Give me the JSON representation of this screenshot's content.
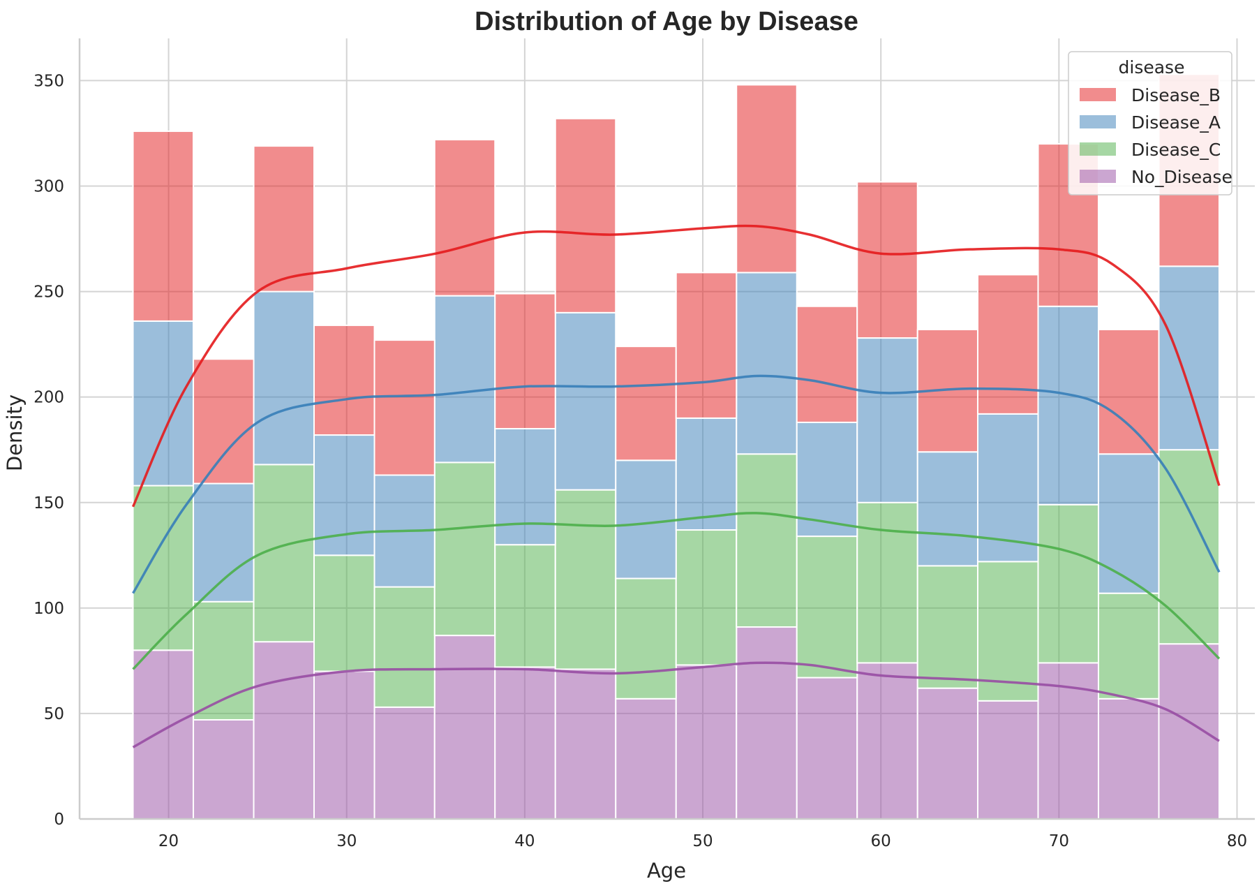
{
  "chart_data": {
    "type": "bar",
    "stacked": true,
    "title": "Distribution of Age by Disease",
    "xlabel": "Age",
    "ylabel": "Density",
    "xlim": [
      15,
      81
    ],
    "ylim": [
      0,
      370
    ],
    "xticks": [
      20,
      30,
      40,
      50,
      60,
      70,
      80
    ],
    "yticks": [
      0,
      50,
      100,
      150,
      200,
      250,
      300,
      350
    ],
    "grid": true,
    "legend": {
      "title": "disease",
      "placement": "top-right"
    },
    "bin_edges": [
      18,
      21.39,
      24.78,
      28.17,
      31.56,
      34.94,
      38.33,
      41.72,
      45.11,
      48.5,
      51.89,
      55.28,
      58.67,
      62.06,
      65.44,
      68.83,
      72.22,
      75.61,
      79
    ],
    "series": [
      {
        "name": "No_Disease",
        "color": "#984ea3",
        "values": [
          80,
          47,
          84,
          70,
          53,
          87,
          72,
          71,
          57,
          73,
          91,
          67,
          74,
          62,
          56,
          74,
          57,
          83
        ]
      },
      {
        "name": "Disease_C",
        "color": "#4daf4a",
        "values": [
          78,
          56,
          84,
          55,
          57,
          82,
          58,
          85,
          57,
          64,
          82,
          67,
          76,
          58,
          66,
          75,
          50,
          92
        ]
      },
      {
        "name": "Disease_A",
        "color": "#377eb8",
        "values": [
          78,
          56,
          82,
          57,
          53,
          79,
          55,
          84,
          56,
          53,
          86,
          54,
          78,
          54,
          70,
          94,
          66,
          87
        ]
      },
      {
        "name": "Disease_B",
        "color": "#e41a1c",
        "values": [
          90,
          59,
          69,
          52,
          64,
          74,
          64,
          92,
          54,
          69,
          89,
          55,
          74,
          58,
          66,
          77,
          59,
          91
        ]
      }
    ],
    "kde": [
      {
        "name": "No_Disease",
        "color": "#984ea3",
        "x": [
          18,
          21,
          25,
          30,
          35,
          40,
          45,
          50,
          53,
          56,
          60,
          65,
          70,
          73,
          76,
          79
        ],
        "y": [
          34,
          48,
          63,
          70,
          71,
          71,
          69,
          72,
          74,
          73,
          68,
          66,
          63,
          59,
          52,
          37
        ]
      },
      {
        "name": "Disease_C",
        "color": "#4daf4a",
        "x": [
          18,
          21,
          25,
          30,
          35,
          40,
          45,
          50,
          53,
          56,
          60,
          65,
          70,
          73,
          76,
          79
        ],
        "y": [
          71,
          97,
          125,
          135,
          137,
          140,
          139,
          143,
          145,
          142,
          137,
          134,
          128,
          118,
          101,
          76
        ]
      },
      {
        "name": "Disease_A",
        "color": "#377eb8",
        "x": [
          18,
          21,
          25,
          30,
          35,
          40,
          45,
          50,
          53,
          56,
          60,
          65,
          70,
          73,
          76,
          79
        ],
        "y": [
          107,
          149,
          188,
          199,
          201,
          205,
          205,
          207,
          210,
          208,
          202,
          204,
          202,
          193,
          166,
          117
        ]
      },
      {
        "name": "Disease_B",
        "color": "#e41a1c",
        "x": [
          18,
          21,
          25,
          30,
          35,
          40,
          45,
          50,
          53,
          56,
          60,
          65,
          70,
          73,
          76,
          79
        ],
        "y": [
          148,
          205,
          250,
          261,
          268,
          278,
          277,
          280,
          281,
          277,
          268,
          270,
          270,
          263,
          234,
          158
        ]
      }
    ],
    "legend_order": [
      "Disease_B",
      "Disease_A",
      "Disease_C",
      "No_Disease"
    ]
  }
}
